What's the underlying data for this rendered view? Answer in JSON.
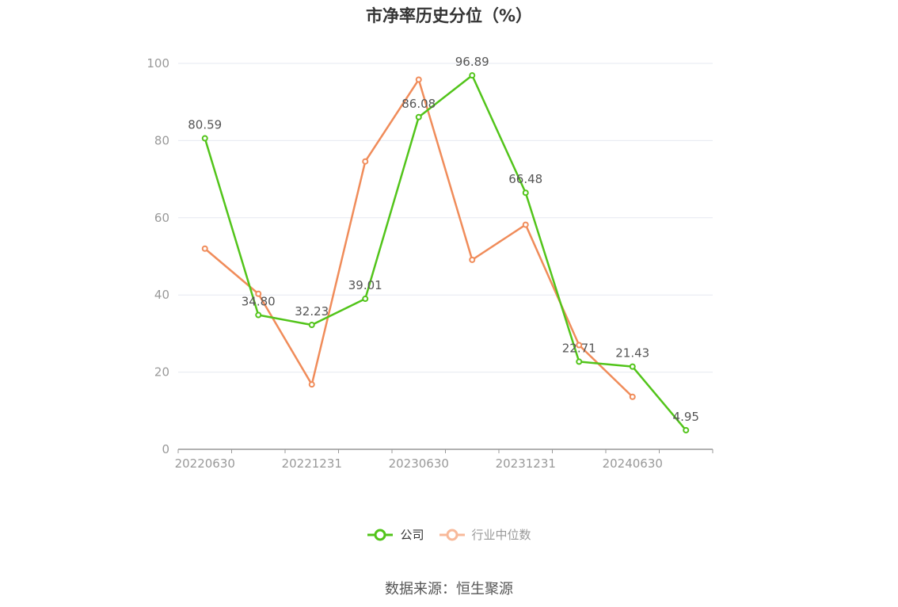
{
  "chart_data": {
    "type": "line",
    "title": "市净率历史分位（%）",
    "x": [
      "20220630",
      "20220930",
      "20221231",
      "20230331",
      "20230630",
      "20230930",
      "20231231",
      "20240331",
      "20240630",
      "20240930"
    ],
    "x_tick_labels": [
      "20220630",
      "20221231",
      "20230630",
      "20231231",
      "20240630"
    ],
    "ylim": [
      0,
      100
    ],
    "y_ticks": [
      0,
      20,
      40,
      60,
      80,
      100
    ],
    "grid": true,
    "legend_position": "bottom",
    "series": [
      {
        "name": "公司",
        "color": "#52c41a",
        "values": [
          80.59,
          34.8,
          32.23,
          39.01,
          86.08,
          96.89,
          66.48,
          22.71,
          21.43,
          4.95
        ],
        "value_labels": [
          "80.59",
          "34.80",
          "32.23",
          "39.01",
          "86.08",
          "96.89",
          "66.48",
          "22.71",
          "21.43",
          "4.95"
        ]
      },
      {
        "name": "行业中位数",
        "color": "#f08c5a",
        "legend_color": "#f8b99a",
        "values": [
          52.0,
          40.3,
          16.8,
          74.6,
          95.8,
          49.1,
          58.2,
          27.0,
          13.6,
          null
        ]
      }
    ]
  },
  "source_text": "数据来源：恒生聚源"
}
